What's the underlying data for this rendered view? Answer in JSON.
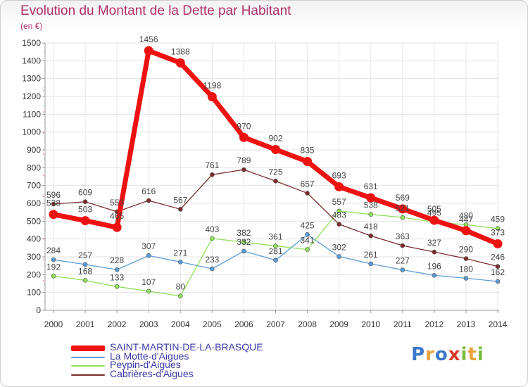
{
  "header": {
    "title": "Evolution du Montant de la Dette par Habitant",
    "unit": "(en €)"
  },
  "logo": {
    "letters": [
      {
        "ch": "P",
        "color": "#3c78c8"
      },
      {
        "ch": "r",
        "color": "#e8a23a"
      },
      {
        "ch": "o",
        "color": "#3c78c8"
      },
      {
        "ch": "x",
        "color": "#d63a2a"
      },
      {
        "ch": "i",
        "color": "#7bbd3c"
      },
      {
        "ch": "t",
        "color": "#e8a23a"
      },
      {
        "ch": "i",
        "color": "#7bbd3c"
      }
    ]
  },
  "chart_data": {
    "type": "line",
    "title": "Evolution du Montant de la Dette par Habitant",
    "ylabel": "(en €)",
    "ylim": [
      0,
      1500
    ],
    "yticks": [
      "0",
      "100",
      "200",
      "300",
      "400",
      "500",
      "600",
      "700",
      "800",
      "900",
      "1000",
      "1100",
      "1200",
      "1300",
      "1400",
      "1500"
    ],
    "categories": [
      "2000",
      "2001",
      "2002",
      "2003",
      "2004",
      "2005",
      "2006",
      "2007",
      "2008",
      "2009",
      "2010",
      "2011",
      "2012",
      "2013",
      "2014"
    ],
    "grid": true,
    "legend": "bottom-left",
    "series": [
      {
        "name": "SAINT-MARTIN-DE-LA-BRASQUE",
        "color": "#ee1111",
        "values": [
          538,
          503,
          465,
          1456,
          1388,
          1198,
          970,
          902,
          835,
          693,
          631,
          569,
          505,
          447,
          373
        ]
      },
      {
        "name": "La Motte-d'Aigues",
        "color": "#5b9bd5",
        "values": [
          284,
          257,
          228,
          307,
          271,
          233,
          332,
          281,
          425,
          302,
          261,
          227,
          196,
          180,
          162
        ]
      },
      {
        "name": "Peypin-d'Aigues",
        "color": "#8fe05a",
        "values": [
          192,
          168,
          133,
          107,
          80,
          403,
          382,
          361,
          341,
          557,
          538,
          521,
          495,
          480,
          459
        ]
      },
      {
        "name": "Cabrières-d'Aigues",
        "color": "#7b2b2b",
        "values": [
          596,
          609,
          553,
          616,
          567,
          761,
          789,
          725,
          657,
          483,
          418,
          363,
          327,
          290,
          246
        ]
      }
    ]
  }
}
